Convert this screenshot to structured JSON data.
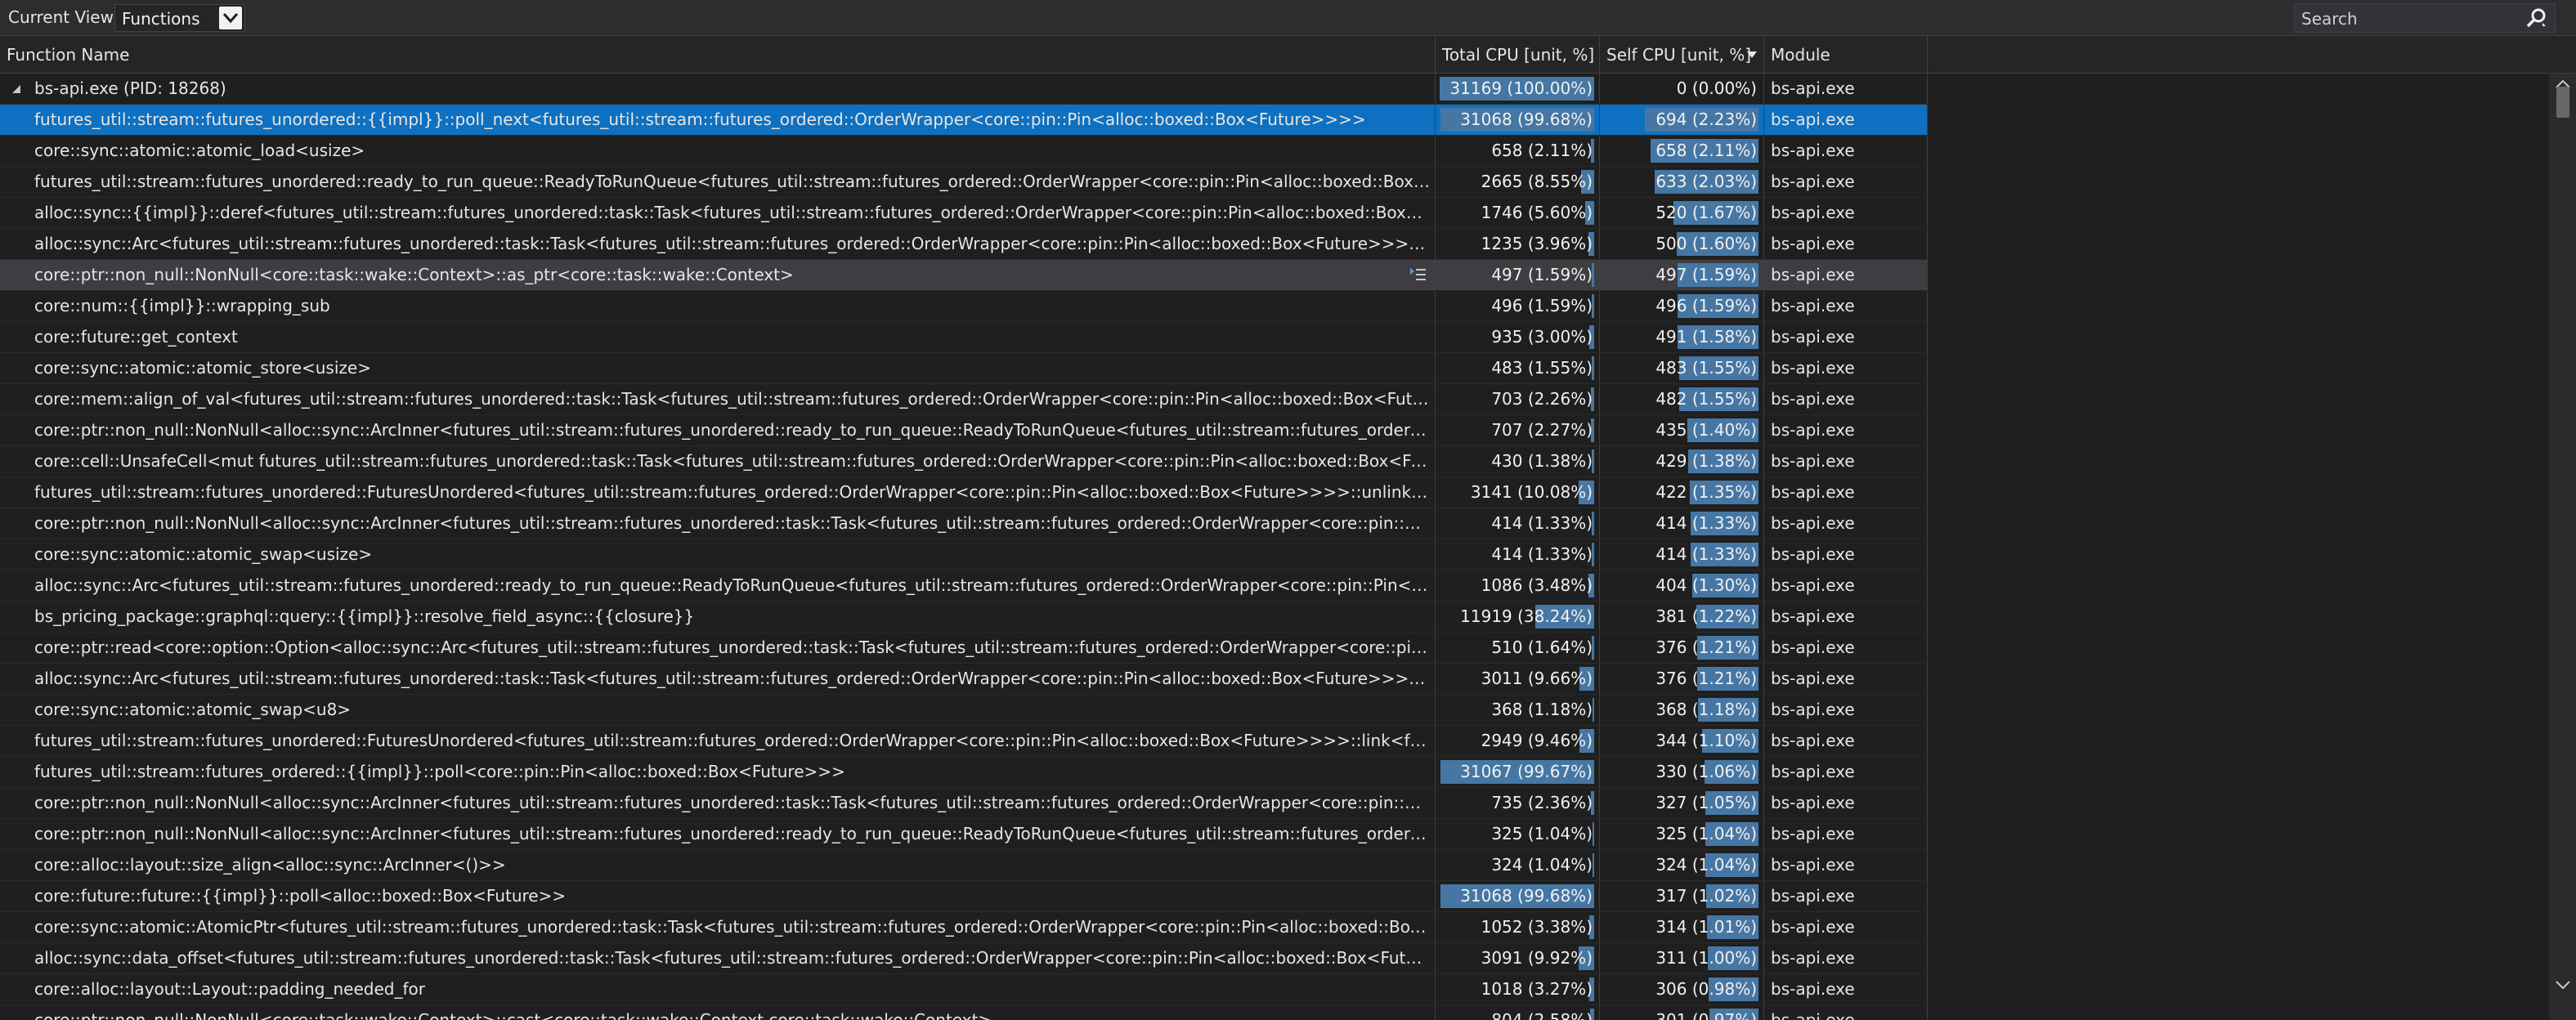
{
  "toolbar": {
    "current_view_label": "Current View:",
    "current_view_value": "Functions",
    "search_placeholder": "Search"
  },
  "columns": {
    "function_name": "Function Name",
    "total_cpu": "Total CPU [unit, %]",
    "self_cpu": "Self CPU [unit, %]",
    "module": "Module"
  },
  "colors": {
    "selected_row": "#0e70c0",
    "bar": "#4677a4",
    "background": "#1f1f1f"
  },
  "rows": [
    {
      "func": "bs-api.exe (PID: 18268)",
      "total": "31169 (100.00%)",
      "total_pct": 100.0,
      "self": "0 (0.00%)",
      "self_pct": 0.0,
      "module": "bs-api.exe",
      "root": true
    },
    {
      "func": "futures_util::stream::futures_unordered::{{impl}}::poll_next<futures_util::stream::futures_ordered::OrderWrapper<core::pin::Pin<alloc::boxed::Box<Future>>>>",
      "total": "31068 (99.68%)",
      "total_pct": 99.68,
      "self": "694 (2.23%)",
      "self_pct": 2.23,
      "module": "bs-api.exe",
      "selected": true
    },
    {
      "func": "core::sync::atomic::atomic_load<usize>",
      "total": "658 (2.11%)",
      "total_pct": 2.11,
      "self": "658 (2.11%)",
      "self_pct": 2.11,
      "module": "bs-api.exe"
    },
    {
      "func": "futures_util::stream::futures_unordered::ready_to_run_queue::ReadyToRunQueue<futures_util::stream::futures_ordered::OrderWrapper<core::pin::Pin<alloc::boxed::Box<Future>>>>::de...",
      "total": "2665 (8.55%)",
      "total_pct": 8.55,
      "self": "633 (2.03%)",
      "self_pct": 2.03,
      "module": "bs-api.exe"
    },
    {
      "func": "alloc::sync::{{impl}}::deref<futures_util::stream::futures_unordered::task::Task<futures_util::stream::futures_ordered::OrderWrapper<core::pin::Pin<alloc::boxed::Box<Future>>>>>",
      "total": "1746 (5.60%)",
      "total_pct": 5.6,
      "self": "520 (1.67%)",
      "self_pct": 1.67,
      "module": "bs-api.exe"
    },
    {
      "func": "alloc::sync::Arc<futures_util::stream::futures_unordered::task::Task<futures_util::stream::futures_ordered::OrderWrapper<core::pin::Pin<alloc::boxed::Box<Future>>>>>::inner<futures_u...",
      "total": "1235 (3.96%)",
      "total_pct": 3.96,
      "self": "500 (1.60%)",
      "self_pct": 1.6,
      "module": "bs-api.exe"
    },
    {
      "func": "core::ptr::non_null::NonNull<core::task::wake::Context>::as_ptr<core::task::wake::Context>",
      "total": "497 (1.59%)",
      "total_pct": 1.59,
      "self": "497 (1.59%)",
      "self_pct": 1.59,
      "module": "bs-api.exe",
      "hover": true
    },
    {
      "func": "core::num::{{impl}}::wrapping_sub",
      "total": "496 (1.59%)",
      "total_pct": 1.59,
      "self": "496 (1.59%)",
      "self_pct": 1.59,
      "module": "bs-api.exe"
    },
    {
      "func": "core::future::get_context",
      "total": "935 (3.00%)",
      "total_pct": 3.0,
      "self": "491 (1.58%)",
      "self_pct": 1.58,
      "module": "bs-api.exe"
    },
    {
      "func": "core::sync::atomic::atomic_store<usize>",
      "total": "483 (1.55%)",
      "total_pct": 1.55,
      "self": "483 (1.55%)",
      "self_pct": 1.55,
      "module": "bs-api.exe"
    },
    {
      "func": "core::mem::align_of_val<futures_util::stream::futures_unordered::task::Task<futures_util::stream::futures_ordered::OrderWrapper<core::pin::Pin<alloc::boxed::Box<Future>>>>>",
      "total": "703 (2.26%)",
      "total_pct": 2.26,
      "self": "482 (1.55%)",
      "self_pct": 1.55,
      "module": "bs-api.exe"
    },
    {
      "func": "core::ptr::non_null::NonNull<alloc::sync::ArcInner<futures_util::stream::futures_unordered::ready_to_run_queue::ReadyToRunQueue<futures_util::stream::futures_ordered::OrderWrapper...",
      "total": "707 (2.27%)",
      "total_pct": 2.27,
      "self": "435 (1.40%)",
      "self_pct": 1.4,
      "module": "bs-api.exe"
    },
    {
      "func": "core::cell::UnsafeCell<mut futures_util::stream::futures_unordered::task::Task<futures_util::stream::futures_ordered::OrderWrapper<core::pin::Pin<alloc::boxed::Box<Future>>>>*>::get<...",
      "total": "430 (1.38%)",
      "total_pct": 1.38,
      "self": "429 (1.38%)",
      "self_pct": 1.38,
      "module": "bs-api.exe"
    },
    {
      "func": "futures_util::stream::futures_unordered::FuturesUnordered<futures_util::stream::futures_ordered::OrderWrapper<core::pin::Pin<alloc::boxed::Box<Future>>>>::unlink<futures_util::strea...",
      "total": "3141 (10.08%)",
      "total_pct": 10.08,
      "self": "422 (1.35%)",
      "self_pct": 1.35,
      "module": "bs-api.exe"
    },
    {
      "func": "core::ptr::non_null::NonNull<alloc::sync::ArcInner<futures_util::stream::futures_unordered::task::Task<futures_util::stream::futures_ordered::OrderWrapper<core::pin::Pin<alloc::boxed::Bo...",
      "total": "414 (1.33%)",
      "total_pct": 1.33,
      "self": "414 (1.33%)",
      "self_pct": 1.33,
      "module": "bs-api.exe"
    },
    {
      "func": "core::sync::atomic::atomic_swap<usize>",
      "total": "414 (1.33%)",
      "total_pct": 1.33,
      "self": "414 (1.33%)",
      "self_pct": 1.33,
      "module": "bs-api.exe"
    },
    {
      "func": "alloc::sync::Arc<futures_util::stream::futures_unordered::ready_to_run_queue::ReadyToRunQueue<futures_util::stream::futures_ordered::OrderWrapper<core::pin::Pin<alloc::boxed::Box<...",
      "total": "1086 (3.48%)",
      "total_pct": 3.48,
      "self": "404 (1.30%)",
      "self_pct": 1.3,
      "module": "bs-api.exe"
    },
    {
      "func": "bs_pricing_package::graphql::query::{{impl}}::resolve_field_async::{{closure}}",
      "total": "11919 (38.24%)",
      "total_pct": 38.24,
      "self": "381 (1.22%)",
      "self_pct": 1.22,
      "module": "bs-api.exe"
    },
    {
      "func": "core::ptr::read<core::option::Option<alloc::sync::Arc<futures_util::stream::futures_unordered::task::Task<futures_util::stream::futures_ordered::OrderWrapper<core::pin::Pin<alloc::boxed::...",
      "total": "510 (1.64%)",
      "total_pct": 1.64,
      "self": "376 (1.21%)",
      "self_pct": 1.21,
      "module": "bs-api.exe"
    },
    {
      "func": "alloc::sync::Arc<futures_util::stream::futures_unordered::task::Task<futures_util::stream::futures_ordered::OrderWrapper<core::pin::Pin<alloc::boxed::Box<Future>>>>>::from_raw<futur...",
      "total": "3011 (9.66%)",
      "total_pct": 9.66,
      "self": "376 (1.21%)",
      "self_pct": 1.21,
      "module": "bs-api.exe"
    },
    {
      "func": "core::sync::atomic::atomic_swap<u8>",
      "total": "368 (1.18%)",
      "total_pct": 1.18,
      "self": "368 (1.18%)",
      "self_pct": 1.18,
      "module": "bs-api.exe"
    },
    {
      "func": "futures_util::stream::futures_unordered::FuturesUnordered<futures_util::stream::futures_ordered::OrderWrapper<core::pin::Pin<alloc::boxed::Box<Future>>>>::link<futures_util::stream::...",
      "total": "2949 (9.46%)",
      "total_pct": 9.46,
      "self": "344 (1.10%)",
      "self_pct": 1.1,
      "module": "bs-api.exe"
    },
    {
      "func": "futures_util::stream::futures_ordered::{{impl}}::poll<core::pin::Pin<alloc::boxed::Box<Future>>>",
      "total": "31067 (99.67%)",
      "total_pct": 99.67,
      "self": "330 (1.06%)",
      "self_pct": 1.06,
      "module": "bs-api.exe"
    },
    {
      "func": "core::ptr::non_null::NonNull<alloc::sync::ArcInner<futures_util::stream::futures_unordered::task::Task<futures_util::stream::futures_ordered::OrderWrapper<core::pin::Pin<alloc::boxed::Bo...",
      "total": "735 (2.36%)",
      "total_pct": 2.36,
      "self": "327 (1.05%)",
      "self_pct": 1.05,
      "module": "bs-api.exe"
    },
    {
      "func": "core::ptr::non_null::NonNull<alloc::sync::ArcInner<futures_util::stream::futures_unordered::ready_to_run_queue::ReadyToRunQueue<futures_util::stream::futures_ordered::OrderWrapper...",
      "total": "325 (1.04%)",
      "total_pct": 1.04,
      "self": "325 (1.04%)",
      "self_pct": 1.04,
      "module": "bs-api.exe"
    },
    {
      "func": "core::alloc::layout::size_align<alloc::sync::ArcInner<()>>",
      "total": "324 (1.04%)",
      "total_pct": 1.04,
      "self": "324 (1.04%)",
      "self_pct": 1.04,
      "module": "bs-api.exe"
    },
    {
      "func": "core::future::future::{{impl}}::poll<alloc::boxed::Box<Future>>",
      "total": "31068 (99.68%)",
      "total_pct": 99.68,
      "self": "317 (1.02%)",
      "self_pct": 1.02,
      "module": "bs-api.exe"
    },
    {
      "func": "core::sync::atomic::AtomicPtr<futures_util::stream::futures_unordered::task::Task<futures_util::stream::futures_ordered::OrderWrapper<core::pin::Pin<alloc::boxed::Box<Future>>>>>::lo...",
      "total": "1052 (3.38%)",
      "total_pct": 3.38,
      "self": "314 (1.01%)",
      "self_pct": 1.01,
      "module": "bs-api.exe"
    },
    {
      "func": "alloc::sync::data_offset<futures_util::stream::futures_unordered::task::Task<futures_util::stream::futures_ordered::OrderWrapper<core::pin::Pin<alloc::boxed::Box<Future>>>>>",
      "total": "3091 (9.92%)",
      "total_pct": 9.92,
      "self": "311 (1.00%)",
      "self_pct": 1.0,
      "module": "bs-api.exe"
    },
    {
      "func": "core::alloc::layout::Layout::padding_needed_for",
      "total": "1018 (3.27%)",
      "total_pct": 3.27,
      "self": "306 (0.98%)",
      "self_pct": 0.98,
      "module": "bs-api.exe"
    },
    {
      "func": "core::ptr::non_null::NonNull<core::task::wake::Context>::cast<core::task::wake::Context,core::task::wake::Context>",
      "total": "804 (2.58%)",
      "total_pct": 2.58,
      "self": "301 (0.97%)",
      "self_pct": 0.97,
      "module": "bs-api.exe"
    }
  ]
}
